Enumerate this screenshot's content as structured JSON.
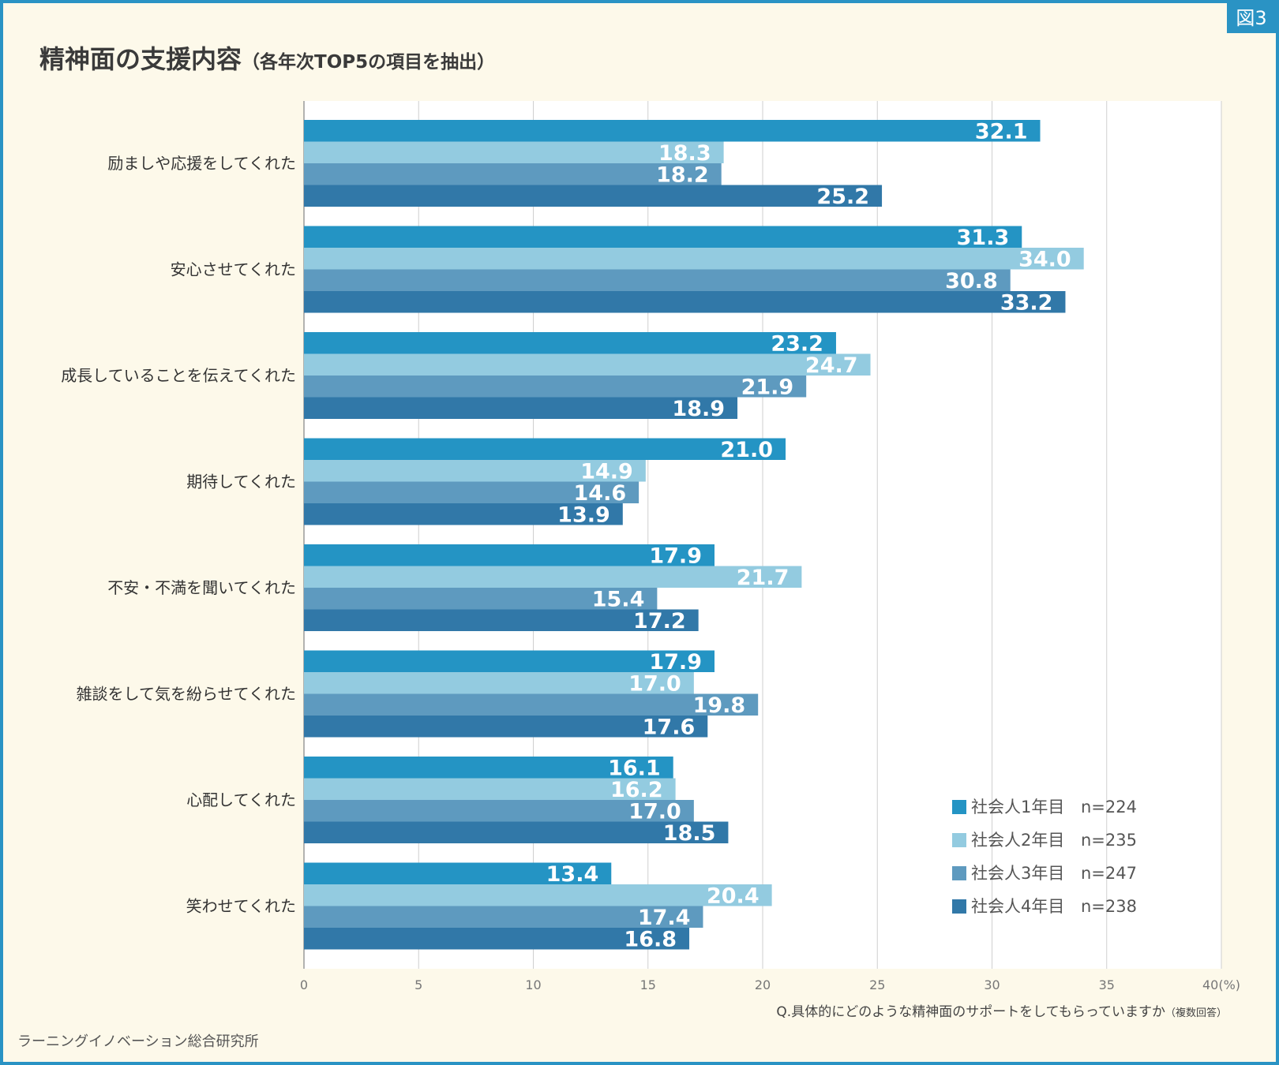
{
  "figure_label": "図3",
  "title": "精神面の支援内容",
  "subtitle": "（各年次TOP5の項目を抽出）",
  "question": "Q.具体的にどのような精神面のサポートをしてもらっていますか",
  "question_note": "（複数回答）",
  "source": "ラーニングイノベーション総合研究所",
  "colors": {
    "frame": "#2a93c4",
    "background": "#fdf9ea"
  },
  "chart_data": {
    "type": "bar",
    "orientation": "horizontal",
    "title": "精神面の支援内容",
    "xlabel": "",
    "ylabel": "",
    "xlim": [
      0,
      40
    ],
    "x_unit_label": "40(%)",
    "ticks": [
      0,
      5,
      10,
      15,
      20,
      25,
      30,
      35,
      40
    ],
    "tick_labels": [
      "0",
      "5",
      "10",
      "15",
      "20",
      "25",
      "30",
      "35",
      "40(%)"
    ],
    "grid": true,
    "legend_position": "bottom-right",
    "categories": [
      "励ましや応援をしてくれた",
      "安心させてくれた",
      "成長していることを伝えてくれた",
      "期待してくれた",
      "不安・不満を聞いてくれた",
      "雑談をして気を紛らせてくれた",
      "心配してくれた",
      "笑わせてくれた"
    ],
    "series": [
      {
        "name": "社会人1年目",
        "n": "n=224",
        "color": "#2494c4",
        "values": [
          32.1,
          31.3,
          23.2,
          21.0,
          17.9,
          17.9,
          16.1,
          13.4
        ],
        "labels": [
          "32.1",
          "31.3",
          "23.2",
          "21.0",
          "17.9",
          "17.9",
          "16.1",
          "13.4"
        ]
      },
      {
        "name": "社会人2年目",
        "n": "n=235",
        "color": "#93cbe0",
        "values": [
          18.3,
          34.0,
          24.7,
          14.9,
          21.7,
          17.0,
          16.2,
          20.4
        ],
        "labels": [
          "18.3",
          "34.0",
          "24.7",
          "14.9",
          "21.7",
          "17.0",
          "16.2",
          "20.4"
        ]
      },
      {
        "name": "社会人3年目",
        "n": "n=247",
        "color": "#5e9abf",
        "values": [
          18.2,
          30.8,
          21.9,
          14.6,
          15.4,
          19.8,
          17.0,
          17.4
        ],
        "labels": [
          "18.2",
          "30.8",
          "21.9",
          "14.6",
          "15.4",
          "19.8",
          "17.0",
          "17.4"
        ]
      },
      {
        "name": "社会人4年目",
        "n": "n=238",
        "color": "#3178a8",
        "values": [
          25.2,
          33.2,
          18.9,
          13.9,
          17.2,
          17.6,
          18.5,
          16.8
        ],
        "labels": [
          "25.2",
          "33.2",
          "18.9",
          "13.9",
          "17.2",
          "17.6",
          "18.5",
          "16.8"
        ]
      }
    ]
  }
}
